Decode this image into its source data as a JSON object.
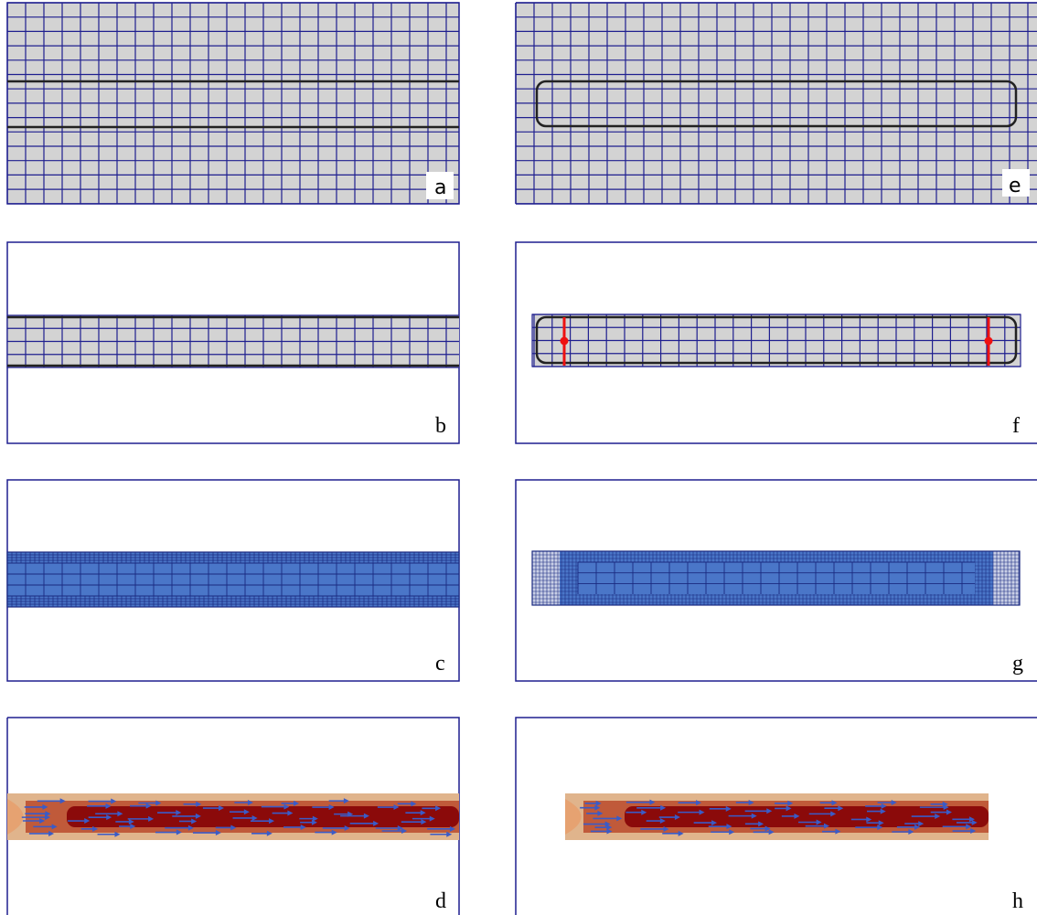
{
  "panels": [
    {
      "id": "a",
      "label": "a"
    },
    {
      "id": "b",
      "label": "b"
    },
    {
      "id": "c",
      "label": "c"
    },
    {
      "id": "d",
      "label": "d"
    },
    {
      "id": "e",
      "label": "e"
    },
    {
      "id": "f",
      "label": "f"
    },
    {
      "id": "g",
      "label": "g"
    },
    {
      "id": "h",
      "label": "h"
    }
  ],
  "colors": {
    "grid_line": "#1f1f8f",
    "cell_fill": "#d3d3d3",
    "fine_mesh_fill": "#4a76c8",
    "geometry_outline": "#222222",
    "probe": "#ee1111",
    "flow_dark": "#8b0a0a",
    "flow_mid": "#c05a3a",
    "flow_light": "#e0b48c",
    "velocity_arrow": "#3a5bc7"
  }
}
